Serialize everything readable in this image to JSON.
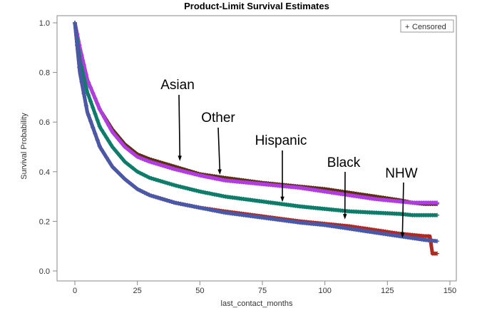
{
  "chart_data": {
    "type": "line",
    "title": "Product-Limit Survival Estimates",
    "xlabel": "last_contact_months",
    "ylabel": "Survival Probability",
    "xlim": [
      0,
      150
    ],
    "ylim": [
      0,
      1.0
    ],
    "xticks": [
      "0",
      "25",
      "50",
      "75",
      "100",
      "125",
      "150"
    ],
    "yticks": [
      "0.0",
      "0.2",
      "0.4",
      "0.6",
      "0.8",
      "1.0"
    ],
    "grid": false,
    "legend": {
      "placement": "top-right",
      "symbol": "+",
      "label": "Censored"
    },
    "colors": {
      "asian": "#5c2f12",
      "other": "#b13de0",
      "hispanic": "#0f7c6a",
      "black": "#b02a24",
      "nhw": "#4a58a8"
    },
    "series": [
      {
        "key": "asian",
        "x": [
          0,
          2,
          5,
          10,
          15,
          20,
          25,
          30,
          40,
          50,
          60,
          75,
          90,
          100,
          110,
          120,
          130,
          135,
          140,
          143,
          145
        ],
        "y": [
          1.0,
          0.9,
          0.77,
          0.65,
          0.57,
          0.51,
          0.47,
          0.45,
          0.42,
          0.39,
          0.375,
          0.355,
          0.34,
          0.33,
          0.315,
          0.3,
          0.285,
          0.275,
          0.27,
          0.27,
          0.27
        ]
      },
      {
        "key": "other",
        "x": [
          0,
          2,
          5,
          10,
          15,
          20,
          25,
          30,
          40,
          50,
          60,
          75,
          90,
          100,
          110,
          120,
          130,
          135,
          140,
          143,
          145
        ],
        "y": [
          1.0,
          0.9,
          0.77,
          0.65,
          0.56,
          0.5,
          0.46,
          0.44,
          0.41,
          0.385,
          0.365,
          0.35,
          0.335,
          0.32,
          0.305,
          0.29,
          0.28,
          0.275,
          0.275,
          0.275,
          0.275
        ]
      },
      {
        "key": "hispanic",
        "x": [
          0,
          2,
          5,
          10,
          15,
          20,
          25,
          30,
          40,
          50,
          60,
          75,
          90,
          100,
          110,
          120,
          130,
          135,
          140,
          145
        ],
        "y": [
          1.0,
          0.85,
          0.72,
          0.58,
          0.5,
          0.44,
          0.4,
          0.375,
          0.345,
          0.32,
          0.3,
          0.28,
          0.26,
          0.25,
          0.24,
          0.235,
          0.23,
          0.225,
          0.225,
          0.225
        ]
      },
      {
        "key": "black",
        "x": [
          0,
          2,
          5,
          10,
          15,
          20,
          25,
          30,
          40,
          50,
          60,
          75,
          90,
          100,
          110,
          120,
          130,
          140,
          142,
          143,
          145
        ],
        "y": [
          1.0,
          0.8,
          0.64,
          0.5,
          0.42,
          0.37,
          0.33,
          0.305,
          0.275,
          0.255,
          0.24,
          0.22,
          0.2,
          0.19,
          0.18,
          0.165,
          0.15,
          0.14,
          0.14,
          0.07,
          0.07
        ]
      },
      {
        "key": "nhw",
        "x": [
          0,
          2,
          5,
          10,
          15,
          20,
          25,
          30,
          40,
          50,
          60,
          75,
          90,
          100,
          110,
          120,
          130,
          140,
          145
        ],
        "y": [
          1.0,
          0.8,
          0.64,
          0.5,
          0.42,
          0.37,
          0.33,
          0.305,
          0.275,
          0.255,
          0.235,
          0.215,
          0.195,
          0.185,
          0.17,
          0.155,
          0.14,
          0.125,
          0.12
        ]
      }
    ],
    "annotations": [
      {
        "text": "Asian",
        "target_x": 42,
        "target_y": 0.44
      },
      {
        "text": "Other",
        "target_x": 58,
        "target_y": 0.385
      },
      {
        "text": "Hispanic",
        "target_x": 83,
        "target_y": 0.275
      },
      {
        "text": "Black",
        "target_x": 108,
        "target_y": 0.205
      },
      {
        "text": "NHW",
        "target_x": 131,
        "target_y": 0.13
      }
    ]
  }
}
